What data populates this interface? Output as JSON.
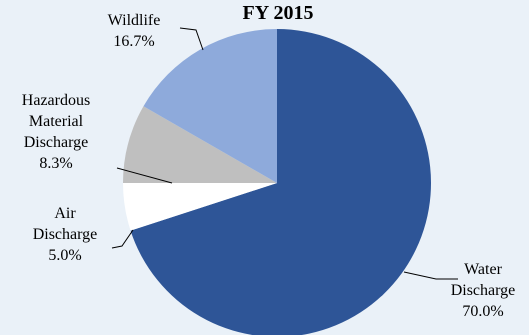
{
  "chart_data": {
    "type": "pie",
    "title": "FY 2015",
    "slices": [
      {
        "label_lines": [
          "Water",
          "Discharge"
        ],
        "label": "Water Discharge",
        "value": 70.0,
        "value_text": "70.0%",
        "color": "#2e5597"
      },
      {
        "label_lines": [
          "Air",
          "Discharge"
        ],
        "label": "Air Discharge",
        "value": 5.0,
        "value_text": "5.0%",
        "color": "#ffffff"
      },
      {
        "label_lines": [
          "Hazardous",
          "Material",
          "Discharge"
        ],
        "label": "Hazardous Material Discharge",
        "value": 8.3,
        "value_text": "8.3%",
        "color": "#bfbfbf"
      },
      {
        "label_lines": [
          "Wildlife"
        ],
        "label": "Wildlife",
        "value": 16.7,
        "value_text": "16.7%",
        "color": "#8eaadb"
      }
    ]
  }
}
